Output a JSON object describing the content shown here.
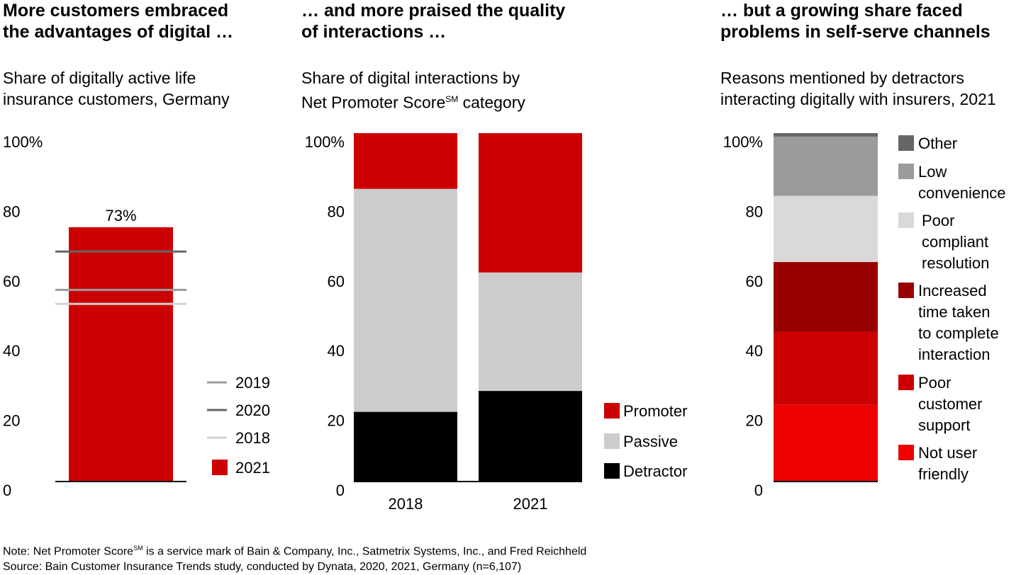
{
  "panels": [
    {
      "title": "More customers embraced\nthe advantages of digital …",
      "subtitle_line1": "Share of digitally active life",
      "subtitle_line2": "insurance customers, Germany"
    },
    {
      "title": "… and more praised the quality\nof interactions …",
      "subtitle_line1": "Share of digital interactions by",
      "subtitle_line2_pre": "Net Promoter Score",
      "subtitle_line2_sup": "SM",
      "subtitle_line2_post": " category"
    },
    {
      "title": "… but a growing share faced\nproblems in self-serve channels",
      "subtitle_line1": "Reasons mentioned by detractors",
      "subtitle_line2": "interacting digitally with insurers, 2021"
    }
  ],
  "footer": {
    "note_pre": "Note: Net Promoter Score",
    "note_sup": "SM",
    "note_post": " is a service mark of Bain & Company, Inc., Satmetrix Systems, Inc., and Fred Reichheld",
    "source": "Source: Bain Customer Insurance Trends study, conducted by Dynata, 2020, 2021, Germany (n=6,107)"
  },
  "chart_data": [
    {
      "type": "bar",
      "categories": [
        "2021"
      ],
      "values": [
        73
      ],
      "data_label": "73%",
      "reference_lines": [
        {
          "name": "2019",
          "value": 55,
          "color": "#9b9b9b"
        },
        {
          "name": "2020",
          "value": 66,
          "color": "#666666"
        },
        {
          "name": "2018",
          "value": 51,
          "color": "#d3d3d3"
        }
      ],
      "bar_color": "#cc0000",
      "legend": [
        {
          "label": "2019",
          "kind": "line",
          "color": "#9b9b9b"
        },
        {
          "label": "2020",
          "kind": "line",
          "color": "#666666"
        },
        {
          "label": "2018",
          "kind": "line",
          "color": "#d3d3d3"
        },
        {
          "label": "2021",
          "kind": "box",
          "color": "#cc0000"
        }
      ],
      "yticks": [
        "100%",
        "80",
        "60",
        "40",
        "20",
        "0"
      ],
      "ylim": [
        0,
        100
      ]
    },
    {
      "type": "bar",
      "stacked": true,
      "categories": [
        "2018",
        "2021"
      ],
      "series": [
        {
          "name": "Detractor",
          "values": [
            20,
            26
          ],
          "color": "#000000"
        },
        {
          "name": "Passive",
          "values": [
            64,
            34
          ],
          "color": "#cccccc"
        },
        {
          "name": "Promoter",
          "values": [
            18,
            42
          ],
          "color": "#cc0000"
        }
      ],
      "legend": [
        {
          "label": "Promoter",
          "color": "#cc0000"
        },
        {
          "label": "Passive",
          "color": "#cccccc"
        },
        {
          "label": "Detractor",
          "color": "#000000"
        }
      ],
      "yticks": [
        "100%",
        "80",
        "60",
        "40",
        "20",
        "0"
      ],
      "ylim": [
        0,
        100
      ]
    },
    {
      "type": "bar",
      "stacked": true,
      "categories": [
        "2021"
      ],
      "series": [
        {
          "name": "Not user friendly",
          "values": [
            22
          ],
          "color": "#ee0000"
        },
        {
          "name": "Poor customer support",
          "values": [
            21
          ],
          "color": "#cc0000"
        },
        {
          "name": "Increased time taken to complete interaction",
          "values": [
            20
          ],
          "color": "#990000"
        },
        {
          "name": "Poor compliant resolution",
          "values": [
            19
          ],
          "color": "#d9d9d9"
        },
        {
          "name": "Low convenience",
          "values": [
            17
          ],
          "color": "#9b9b9b"
        },
        {
          "name": "Other",
          "values": [
            3
          ],
          "color": "#666666"
        }
      ],
      "legend": [
        {
          "lines": [
            "Other"
          ],
          "color": "#666666"
        },
        {
          "lines": [
            "Low",
            "convenience"
          ],
          "color": "#9b9b9b"
        },
        {
          "lines": [
            "Poor",
            "compliant",
            "resolution"
          ],
          "color": "#d9d9d9"
        },
        {
          "lines": [
            "Increased",
            "time taken",
            "to complete",
            "interaction"
          ],
          "color": "#990000"
        },
        {
          "lines": [
            "Poor",
            "customer",
            "support"
          ],
          "color": "#cc0000"
        },
        {
          "lines": [
            "Not user",
            "friendly"
          ],
          "color": "#ee0000"
        }
      ],
      "yticks": [
        "100%",
        "80",
        "60",
        "40",
        "20",
        "0"
      ],
      "ylim": [
        0,
        100
      ]
    }
  ]
}
